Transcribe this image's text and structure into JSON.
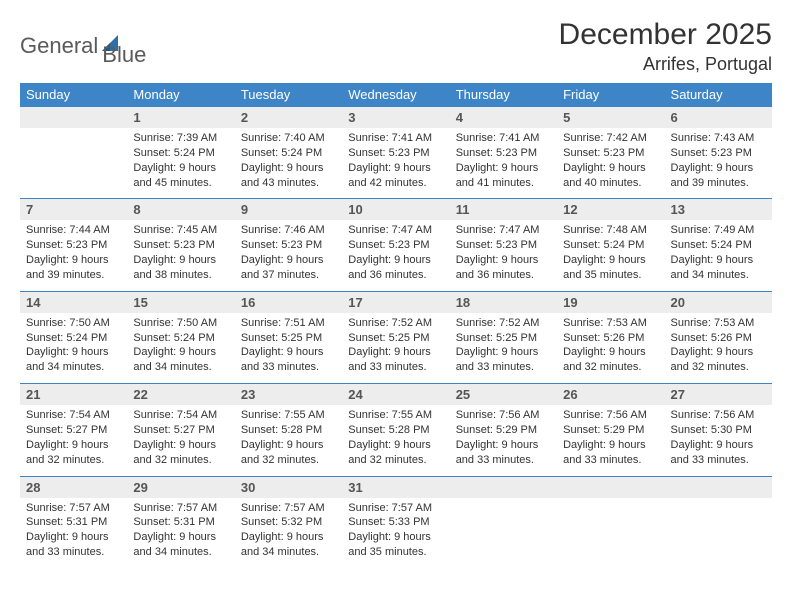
{
  "logo": {
    "text_general": "General",
    "text_blue": "Blue"
  },
  "title": "December 2025",
  "location": "Arrifes, Portugal",
  "colors": {
    "header_bg": "#3d85c6",
    "header_text": "#ffffff",
    "daynum_bg": "#ededed",
    "daynum_text": "#555555",
    "body_text": "#333333",
    "row_border": "#3d85c6",
    "logo_gray": "#5a5a5a",
    "logo_blue": "#2f6fa7"
  },
  "weekdays": [
    "Sunday",
    "Monday",
    "Tuesday",
    "Wednesday",
    "Thursday",
    "Friday",
    "Saturday"
  ],
  "weeks": [
    [
      null,
      {
        "n": "1",
        "sunrise": "7:39 AM",
        "sunset": "5:24 PM",
        "daylight": "9 hours and 45 minutes."
      },
      {
        "n": "2",
        "sunrise": "7:40 AM",
        "sunset": "5:24 PM",
        "daylight": "9 hours and 43 minutes."
      },
      {
        "n": "3",
        "sunrise": "7:41 AM",
        "sunset": "5:23 PM",
        "daylight": "9 hours and 42 minutes."
      },
      {
        "n": "4",
        "sunrise": "7:41 AM",
        "sunset": "5:23 PM",
        "daylight": "9 hours and 41 minutes."
      },
      {
        "n": "5",
        "sunrise": "7:42 AM",
        "sunset": "5:23 PM",
        "daylight": "9 hours and 40 minutes."
      },
      {
        "n": "6",
        "sunrise": "7:43 AM",
        "sunset": "5:23 PM",
        "daylight": "9 hours and 39 minutes."
      }
    ],
    [
      {
        "n": "7",
        "sunrise": "7:44 AM",
        "sunset": "5:23 PM",
        "daylight": "9 hours and 39 minutes."
      },
      {
        "n": "8",
        "sunrise": "7:45 AM",
        "sunset": "5:23 PM",
        "daylight": "9 hours and 38 minutes."
      },
      {
        "n": "9",
        "sunrise": "7:46 AM",
        "sunset": "5:23 PM",
        "daylight": "9 hours and 37 minutes."
      },
      {
        "n": "10",
        "sunrise": "7:47 AM",
        "sunset": "5:23 PM",
        "daylight": "9 hours and 36 minutes."
      },
      {
        "n": "11",
        "sunrise": "7:47 AM",
        "sunset": "5:23 PM",
        "daylight": "9 hours and 36 minutes."
      },
      {
        "n": "12",
        "sunrise": "7:48 AM",
        "sunset": "5:24 PM",
        "daylight": "9 hours and 35 minutes."
      },
      {
        "n": "13",
        "sunrise": "7:49 AM",
        "sunset": "5:24 PM",
        "daylight": "9 hours and 34 minutes."
      }
    ],
    [
      {
        "n": "14",
        "sunrise": "7:50 AM",
        "sunset": "5:24 PM",
        "daylight": "9 hours and 34 minutes."
      },
      {
        "n": "15",
        "sunrise": "7:50 AM",
        "sunset": "5:24 PM",
        "daylight": "9 hours and 34 minutes."
      },
      {
        "n": "16",
        "sunrise": "7:51 AM",
        "sunset": "5:25 PM",
        "daylight": "9 hours and 33 minutes."
      },
      {
        "n": "17",
        "sunrise": "7:52 AM",
        "sunset": "5:25 PM",
        "daylight": "9 hours and 33 minutes."
      },
      {
        "n": "18",
        "sunrise": "7:52 AM",
        "sunset": "5:25 PM",
        "daylight": "9 hours and 33 minutes."
      },
      {
        "n": "19",
        "sunrise": "7:53 AM",
        "sunset": "5:26 PM",
        "daylight": "9 hours and 32 minutes."
      },
      {
        "n": "20",
        "sunrise": "7:53 AM",
        "sunset": "5:26 PM",
        "daylight": "9 hours and 32 minutes."
      }
    ],
    [
      {
        "n": "21",
        "sunrise": "7:54 AM",
        "sunset": "5:27 PM",
        "daylight": "9 hours and 32 minutes."
      },
      {
        "n": "22",
        "sunrise": "7:54 AM",
        "sunset": "5:27 PM",
        "daylight": "9 hours and 32 minutes."
      },
      {
        "n": "23",
        "sunrise": "7:55 AM",
        "sunset": "5:28 PM",
        "daylight": "9 hours and 32 minutes."
      },
      {
        "n": "24",
        "sunrise": "7:55 AM",
        "sunset": "5:28 PM",
        "daylight": "9 hours and 32 minutes."
      },
      {
        "n": "25",
        "sunrise": "7:56 AM",
        "sunset": "5:29 PM",
        "daylight": "9 hours and 33 minutes."
      },
      {
        "n": "26",
        "sunrise": "7:56 AM",
        "sunset": "5:29 PM",
        "daylight": "9 hours and 33 minutes."
      },
      {
        "n": "27",
        "sunrise": "7:56 AM",
        "sunset": "5:30 PM",
        "daylight": "9 hours and 33 minutes."
      }
    ],
    [
      {
        "n": "28",
        "sunrise": "7:57 AM",
        "sunset": "5:31 PM",
        "daylight": "9 hours and 33 minutes."
      },
      {
        "n": "29",
        "sunrise": "7:57 AM",
        "sunset": "5:31 PM",
        "daylight": "9 hours and 34 minutes."
      },
      {
        "n": "30",
        "sunrise": "7:57 AM",
        "sunset": "5:32 PM",
        "daylight": "9 hours and 34 minutes."
      },
      {
        "n": "31",
        "sunrise": "7:57 AM",
        "sunset": "5:33 PM",
        "daylight": "9 hours and 35 minutes."
      },
      null,
      null,
      null
    ]
  ],
  "labels": {
    "sunrise": "Sunrise:",
    "sunset": "Sunset:",
    "daylight": "Daylight:"
  }
}
